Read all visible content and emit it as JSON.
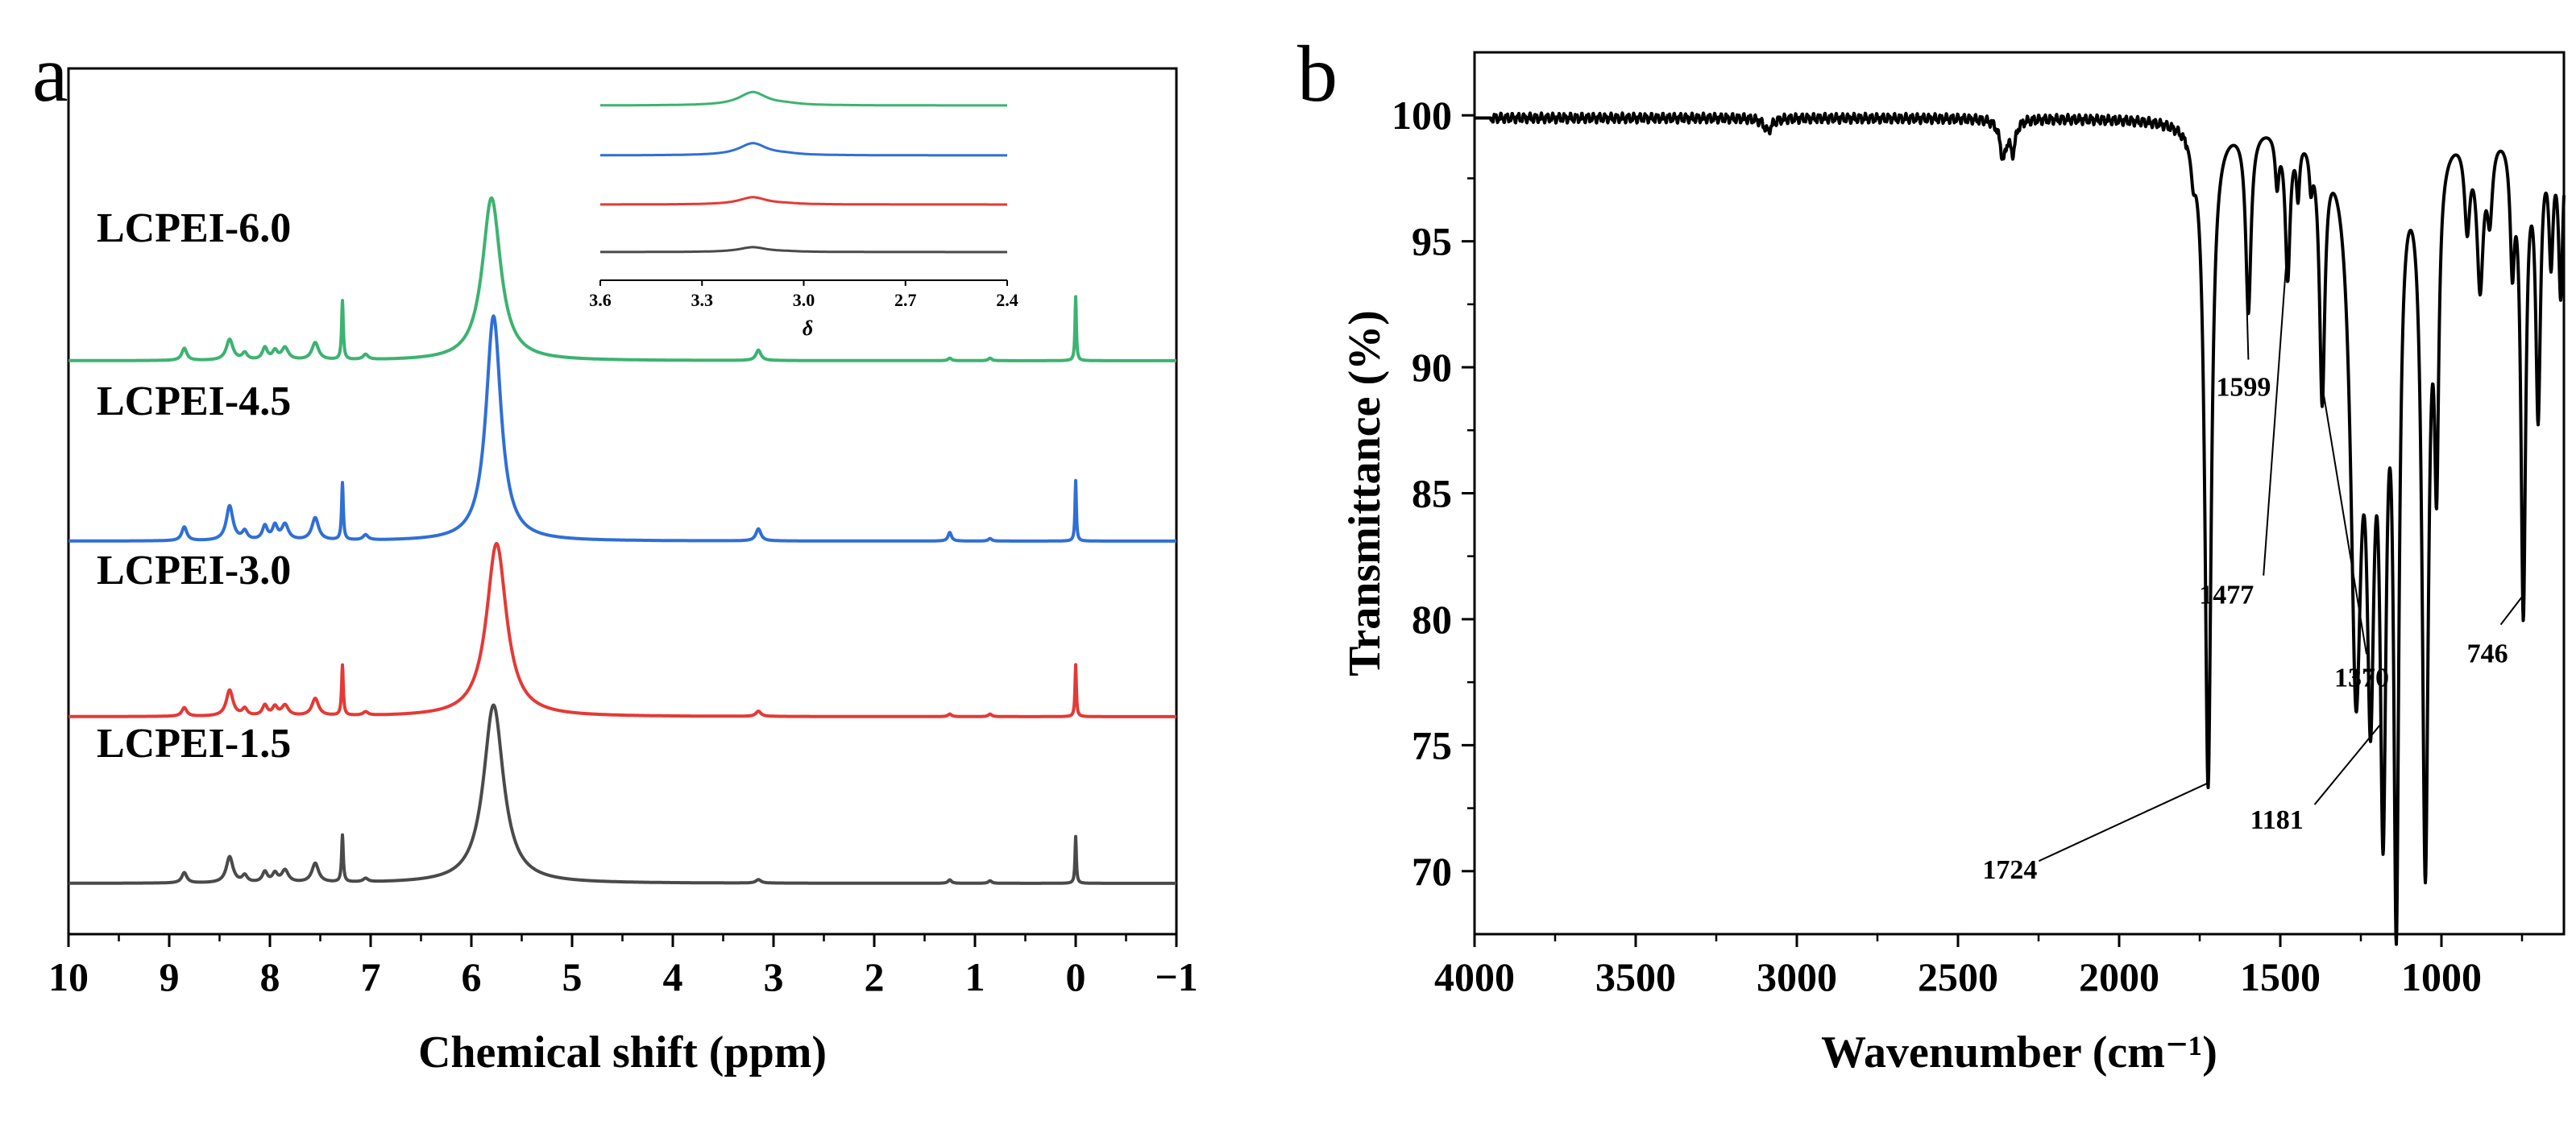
{
  "panels": {
    "a": "a",
    "b": "b"
  },
  "chart_data": [
    {
      "panel": "a",
      "type": "line",
      "xlabel": "Chemical shift (ppm)",
      "ylabel": "",
      "xlim": [
        10,
        -1
      ],
      "x_reversed": true,
      "xticks": [
        10,
        9,
        8,
        7,
        6,
        5,
        4,
        3,
        2,
        1,
        0,
        -1
      ],
      "xtick_labels": [
        "10",
        "9",
        "8",
        "7",
        "6",
        "5",
        "4",
        "3",
        "2",
        "1",
        "0",
        "−1"
      ],
      "grid": false,
      "series": [
        {
          "name": "LCPEI-6.0",
          "color": "#3cb371",
          "peaks": [
            {
              "x": 5.8,
              "h": 0.94,
              "w": 0.11
            },
            {
              "x": 8.85,
              "h": 0.07,
              "w": 0.03
            },
            {
              "x": 8.4,
              "h": 0.12,
              "w": 0.04
            },
            {
              "x": 8.25,
              "h": 0.04,
              "w": 0.03
            },
            {
              "x": 8.05,
              "h": 0.07,
              "w": 0.03
            },
            {
              "x": 7.95,
              "h": 0.05,
              "w": 0.03
            },
            {
              "x": 7.85,
              "h": 0.07,
              "w": 0.04
            },
            {
              "x": 7.55,
              "h": 0.1,
              "w": 0.04
            },
            {
              "x": 7.28,
              "h": 0.34,
              "w": 0.01
            },
            {
              "x": 7.05,
              "h": 0.03,
              "w": 0.03
            },
            {
              "x": 3.15,
              "h": 0.06,
              "w": 0.03
            },
            {
              "x": 1.25,
              "h": 0.015,
              "w": 0.02
            },
            {
              "x": 0.85,
              "h": 0.015,
              "w": 0.02
            },
            {
              "x": 0.0,
              "h": 0.37,
              "w": 0.008
            }
          ]
        },
        {
          "name": "LCPEI-4.5",
          "color": "#2f6fd6",
          "peaks": [
            {
              "x": 5.78,
              "h": 1.3,
              "w": 0.09
            },
            {
              "x": 8.85,
              "h": 0.08,
              "w": 0.03
            },
            {
              "x": 8.4,
              "h": 0.2,
              "w": 0.04
            },
            {
              "x": 8.25,
              "h": 0.05,
              "w": 0.03
            },
            {
              "x": 8.05,
              "h": 0.08,
              "w": 0.03
            },
            {
              "x": 7.95,
              "h": 0.08,
              "w": 0.03
            },
            {
              "x": 7.85,
              "h": 0.09,
              "w": 0.04
            },
            {
              "x": 7.55,
              "h": 0.13,
              "w": 0.04
            },
            {
              "x": 7.28,
              "h": 0.33,
              "w": 0.01
            },
            {
              "x": 7.05,
              "h": 0.03,
              "w": 0.03
            },
            {
              "x": 3.15,
              "h": 0.07,
              "w": 0.03
            },
            {
              "x": 1.25,
              "h": 0.05,
              "w": 0.02
            },
            {
              "x": 0.85,
              "h": 0.015,
              "w": 0.02
            },
            {
              "x": 0.0,
              "h": 0.35,
              "w": 0.008
            }
          ]
        },
        {
          "name": "LCPEI-3.0",
          "color": "#e53935",
          "peaks": [
            {
              "x": 5.75,
              "h": 1.0,
              "w": 0.12
            },
            {
              "x": 8.85,
              "h": 0.05,
              "w": 0.03
            },
            {
              "x": 8.4,
              "h": 0.15,
              "w": 0.04
            },
            {
              "x": 8.25,
              "h": 0.04,
              "w": 0.03
            },
            {
              "x": 8.05,
              "h": 0.06,
              "w": 0.03
            },
            {
              "x": 7.95,
              "h": 0.05,
              "w": 0.03
            },
            {
              "x": 7.85,
              "h": 0.06,
              "w": 0.04
            },
            {
              "x": 7.55,
              "h": 0.1,
              "w": 0.04
            },
            {
              "x": 7.28,
              "h": 0.29,
              "w": 0.01
            },
            {
              "x": 7.05,
              "h": 0.02,
              "w": 0.03
            },
            {
              "x": 3.15,
              "h": 0.03,
              "w": 0.03
            },
            {
              "x": 1.25,
              "h": 0.015,
              "w": 0.02
            },
            {
              "x": 0.85,
              "h": 0.015,
              "w": 0.02
            },
            {
              "x": 0.0,
              "h": 0.3,
              "w": 0.008
            }
          ]
        },
        {
          "name": "LCPEI-1.5",
          "color": "#4a4a4a",
          "peaks": [
            {
              "x": 5.78,
              "h": 1.03,
              "w": 0.12
            },
            {
              "x": 8.85,
              "h": 0.06,
              "w": 0.03
            },
            {
              "x": 8.4,
              "h": 0.15,
              "w": 0.04
            },
            {
              "x": 8.25,
              "h": 0.04,
              "w": 0.03
            },
            {
              "x": 8.05,
              "h": 0.06,
              "w": 0.03
            },
            {
              "x": 7.95,
              "h": 0.05,
              "w": 0.03
            },
            {
              "x": 7.85,
              "h": 0.07,
              "w": 0.04
            },
            {
              "x": 7.55,
              "h": 0.11,
              "w": 0.04
            },
            {
              "x": 7.28,
              "h": 0.27,
              "w": 0.01
            },
            {
              "x": 7.05,
              "h": 0.02,
              "w": 0.03
            },
            {
              "x": 3.15,
              "h": 0.02,
              "w": 0.03
            },
            {
              "x": 1.25,
              "h": 0.02,
              "w": 0.02
            },
            {
              "x": 0.85,
              "h": 0.015,
              "w": 0.02
            },
            {
              "x": 0.0,
              "h": 0.27,
              "w": 0.008
            }
          ]
        }
      ],
      "inset": {
        "xlabel": "δ",
        "xlim": [
          3.6,
          2.4
        ],
        "xticks": [
          3.6,
          3.3,
          3.0,
          2.7,
          2.4
        ],
        "xtick_labels": [
          "3.6",
          "3.3",
          "3.0",
          "2.7",
          "2.4"
        ],
        "series": [
          {
            "name": "LCPEI-6.0",
            "color": "#3cb371",
            "peak_x": 3.15,
            "h": 0.55
          },
          {
            "name": "LCPEI-4.5",
            "color": "#2f6fd6",
            "peak_x": 3.15,
            "h": 0.5
          },
          {
            "name": "LCPEI-3.0",
            "color": "#e53935",
            "peak_x": 3.15,
            "h": 0.3
          },
          {
            "name": "LCPEI-1.5",
            "color": "#4a4a4a",
            "peak_x": 3.15,
            "h": 0.2
          }
        ]
      }
    },
    {
      "panel": "b",
      "type": "line",
      "xlabel": "Wavenumber (cm⁻¹)",
      "ylabel": "Transmittance (%)",
      "xlim": [
        4000,
        620
      ],
      "x_reversed": true,
      "ylim": [
        67.5,
        102.5
      ],
      "xticks": [
        4000,
        3500,
        3000,
        2500,
        2000,
        1500,
        1000
      ],
      "xtick_labels": [
        "4000",
        "3500",
        "3000",
        "2500",
        "2000",
        "1500",
        "1000"
      ],
      "yticks": [
        70,
        75,
        80,
        85,
        90,
        95,
        100
      ],
      "ytick_labels": [
        "70",
        "75",
        "80",
        "85",
        "90",
        "95",
        "100"
      ],
      "grid": false,
      "color": "#000000",
      "baseline": 99.9,
      "bands": [
        {
          "x": 3090,
          "depth": 0.5,
          "w": 15
        },
        {
          "x": 2360,
          "depth": 1.5,
          "w": 12
        },
        {
          "x": 2330,
          "depth": 1.2,
          "w": 10
        },
        {
          "x": 1770,
          "depth": 1.2,
          "w": 8
        },
        {
          "x": 1724,
          "depth": 26.4,
          "w": 12
        },
        {
          "x": 1599,
          "depth": 7.3,
          "w": 10
        },
        {
          "x": 1510,
          "depth": 2.0,
          "w": 7
        },
        {
          "x": 1477,
          "depth": 5.8,
          "w": 9
        },
        {
          "x": 1445,
          "depth": 2.2,
          "w": 6
        },
        {
          "x": 1405,
          "depth": 1.5,
          "w": 6
        },
        {
          "x": 1370,
          "depth": 10.2,
          "w": 10
        },
        {
          "x": 1265,
          "depth": 21.0,
          "w": 20
        },
        {
          "x": 1220,
          "depth": 18.5,
          "w": 14
        },
        {
          "x": 1181,
          "depth": 24.0,
          "w": 12
        },
        {
          "x": 1140,
          "depth": 29.2,
          "w": 10
        },
        {
          "x": 1050,
          "depth": 28.8,
          "w": 12
        },
        {
          "x": 1015,
          "depth": 11.8,
          "w": 8
        },
        {
          "x": 920,
          "depth": 3.5,
          "w": 10
        },
        {
          "x": 880,
          "depth": 6.0,
          "w": 12
        },
        {
          "x": 850,
          "depth": 3.0,
          "w": 10
        },
        {
          "x": 780,
          "depth": 4.8,
          "w": 8
        },
        {
          "x": 746,
          "depth": 19.0,
          "w": 9
        },
        {
          "x": 700,
          "depth": 11.0,
          "w": 9
        },
        {
          "x": 660,
          "depth": 4.8,
          "w": 8
        },
        {
          "x": 630,
          "depth": 6.5,
          "w": 8
        }
      ],
      "annotations": [
        {
          "text": "1724",
          "x": 1724,
          "y": 73.6
        },
        {
          "text": "1599",
          "x": 1599,
          "y": 92.7
        },
        {
          "text": "1477",
          "x": 1477,
          "y": 94.2
        },
        {
          "text": "1370",
          "x": 1370,
          "y": 89.8
        },
        {
          "text": "1181",
          "x": 1181,
          "y": 76.0
        },
        {
          "text": "746",
          "x": 746,
          "y": 81.0
        }
      ]
    }
  ]
}
